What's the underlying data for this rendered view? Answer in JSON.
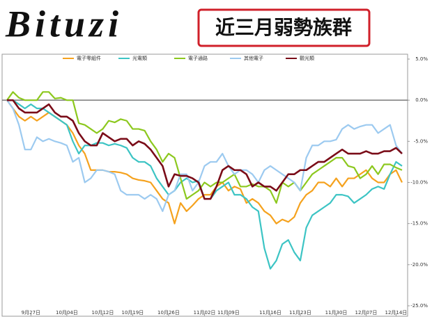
{
  "logo": "Bituzi",
  "chart_data": {
    "type": "line",
    "title": "近三月弱勢族群",
    "categories": [
      null,
      null,
      null,
      null,
      "9月27日",
      null,
      null,
      null,
      null,
      null,
      "10月04日",
      null,
      null,
      null,
      null,
      null,
      "10月12日",
      null,
      null,
      null,
      null,
      "10月19日",
      null,
      null,
      null,
      null,
      null,
      "10月26日",
      null,
      null,
      null,
      null,
      null,
      "11月02日",
      null,
      null,
      null,
      "11月09日",
      null,
      null,
      null,
      null,
      null,
      null,
      "11月16日",
      null,
      null,
      null,
      null,
      "11月23日",
      null,
      null,
      null,
      null,
      null,
      "11月30日",
      null,
      null,
      null,
      null,
      "12月07日",
      null,
      null,
      null,
      null,
      "12月14日",
      null
    ],
    "ylim": [
      -25,
      5
    ],
    "yticks": [
      {
        "value": 5,
        "label": "5.0%"
      },
      {
        "value": 0,
        "label": "0.0%"
      },
      {
        "value": -5,
        "label": "-5.0%"
      },
      {
        "value": -10,
        "label": "-10.0%"
      },
      {
        "value": -15,
        "label": "-15.0%"
      },
      {
        "value": -20,
        "label": "-20.0%"
      },
      {
        "value": -25,
        "label": "-25.0%"
      }
    ],
    "zero_line": true,
    "series": [
      {
        "name": "電子零組件",
        "color": "#f5a21e",
        "values": [
          0,
          -1,
          -2,
          -2.5,
          -2,
          -2.5,
          -2,
          -1.5,
          -2,
          -2.5,
          -3,
          -4,
          -5.5,
          -6.5,
          -8.5,
          -8.5,
          -8.5,
          -8.7,
          -8.7,
          -8.8,
          -9,
          -9.5,
          -9.7,
          -9.8,
          -10,
          -11,
          -12,
          -12.5,
          -15,
          -12.5,
          -13.5,
          -12.8,
          -12,
          -11.5,
          -11.5,
          -10.5,
          -10,
          -11,
          -10.5,
          -10.8,
          -12.5,
          -12,
          -12.5,
          -13.5,
          -14,
          -15,
          -14.5,
          -14.8,
          -14.2,
          -12.5,
          -11.5,
          -11,
          -10,
          -10,
          -10.5,
          -9.5,
          -10.5,
          -9.5,
          -9.5,
          -9,
          -8.5,
          -9.5,
          -10,
          -10,
          -9,
          -8.5,
          -10
        ]
      },
      {
        "name": "光電類",
        "color": "#3cc4c4",
        "values": [
          0,
          0,
          -0.5,
          -1,
          -0.5,
          -1,
          -1,
          -1.5,
          -2,
          -2.5,
          -3,
          -5,
          -6.5,
          -5.5,
          -5.5,
          -5.2,
          -5.2,
          -5.5,
          -5.3,
          -5.5,
          -5.8,
          -7,
          -7.5,
          -7.5,
          -8,
          -9.5,
          -10.5,
          -11.5,
          -11,
          -10,
          -9.5,
          -10,
          -9.8,
          -12,
          -12,
          -11,
          -10.5,
          -10,
          -11.5,
          -11.5,
          -12,
          -13,
          -13.5,
          -18,
          -20.5,
          -19.5,
          -17.5,
          -17,
          -18.5,
          -19.5,
          -15.5,
          -14,
          -13.5,
          -13,
          -12.5,
          -11.5,
          -11.5,
          -11.7,
          -12.5,
          -12,
          -11.5,
          -10.8,
          -10.5,
          -10.8,
          -9,
          -7.5,
          -8
        ]
      },
      {
        "name": "電子通路",
        "color": "#8cc81e",
        "values": [
          0,
          1,
          0.3,
          0,
          0,
          0,
          1,
          1,
          0.2,
          0.3,
          0,
          0,
          -2.8,
          -3,
          -3.5,
          -4,
          -3.5,
          -2.5,
          -2.7,
          -2.3,
          -2.5,
          -3.5,
          -3.5,
          -3.7,
          -5,
          -6,
          -7.5,
          -6.5,
          -7,
          -9.5,
          -12,
          -11.5,
          -11,
          -10,
          -10.5,
          -10,
          -10,
          -9.5,
          -9,
          -10.5,
          -10.5,
          -10.2,
          -10.5,
          -10.5,
          -11,
          -12.5,
          -10,
          -10.5,
          -10,
          -11,
          -10,
          -9,
          -8.5,
          -8,
          -7.5,
          -7,
          -7,
          -8,
          -8.2,
          -9.5,
          -9,
          -8,
          -9,
          -7.8,
          -7.8,
          -8.2,
          -8.5
        ]
      },
      {
        "name": "其他電子",
        "color": "#9ccaf0",
        "values": [
          0,
          -1,
          -3,
          -6,
          -6,
          -4.5,
          -5,
          -4.7,
          -5,
          -5.2,
          -5.5,
          -7.5,
          -7,
          -10,
          -9.5,
          -8.5,
          -8.5,
          -8.7,
          -9,
          -11,
          -11.5,
          -11.5,
          -11.5,
          -12,
          -11.5,
          -12,
          -13.5,
          -11.5,
          -11,
          -9,
          -9,
          -11,
          -10,
          -8,
          -7.5,
          -7.5,
          -6.5,
          -8,
          -9,
          -8.5,
          -8.5,
          -9,
          -10,
          -8.5,
          -8,
          -8.5,
          -9,
          -9.5,
          -10,
          -11,
          -7,
          -5.5,
          -5.5,
          -5,
          -5,
          -4.8,
          -3.5,
          -3,
          -3.5,
          -3.2,
          -3,
          -3,
          -4,
          -3.5,
          -3,
          -5.5,
          -6.5
        ]
      },
      {
        "name": "觀光類",
        "color": "#7a0c18",
        "values": [
          0,
          0,
          -1,
          -1.5,
          -1.5,
          -1.5,
          -1,
          -0.5,
          -1.5,
          -2,
          -2,
          -2.5,
          -4,
          -5,
          -5.5,
          -5.5,
          -4,
          -4.5,
          -5,
          -4.7,
          -4.7,
          -5.5,
          -5,
          -5.3,
          -6,
          -7,
          -8,
          -10.5,
          -9,
          -9.2,
          -9.2,
          -9.5,
          -10,
          -12,
          -12,
          -10.5,
          -8.5,
          -8,
          -8.5,
          -8.5,
          -9,
          -10.5,
          -10,
          -10.5,
          -10.5,
          -11,
          -10,
          -9,
          -9,
          -8.5,
          -8.5,
          -8,
          -7.5,
          -7.5,
          -7,
          -6.5,
          -6,
          -6.5,
          -6.5,
          -6.5,
          -6.2,
          -6.5,
          -6.5,
          -6.2,
          -6.2,
          -5.8,
          -6.5
        ]
      }
    ]
  }
}
